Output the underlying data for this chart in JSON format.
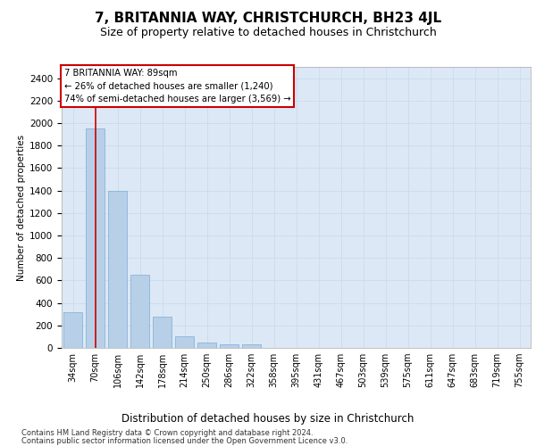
{
  "title": "7, BRITANNIA WAY, CHRISTCHURCH, BH23 4JL",
  "subtitle": "Size of property relative to detached houses in Christchurch",
  "xlabel": "Distribution of detached houses by size in Christchurch",
  "ylabel": "Number of detached properties",
  "footnote1": "Contains HM Land Registry data © Crown copyright and database right 2024.",
  "footnote2": "Contains public sector information licensed under the Open Government Licence v3.0.",
  "annotation_title": "7 BRITANNIA WAY: 89sqm",
  "annotation_line1": "← 26% of detached houses are smaller (1,240)",
  "annotation_line2": "74% of semi-detached houses are larger (3,569) →",
  "bar_categories": [
    "34sqm",
    "70sqm",
    "106sqm",
    "142sqm",
    "178sqm",
    "214sqm",
    "250sqm",
    "286sqm",
    "322sqm",
    "358sqm",
    "395sqm",
    "431sqm",
    "467sqm",
    "503sqm",
    "539sqm",
    "575sqm",
    "611sqm",
    "647sqm",
    "683sqm",
    "719sqm",
    "755sqm"
  ],
  "bar_values": [
    320,
    1950,
    1400,
    650,
    280,
    100,
    45,
    30,
    30,
    0,
    0,
    0,
    0,
    0,
    0,
    0,
    0,
    0,
    0,
    0,
    0
  ],
  "bar_color": "#b8cfe8",
  "bar_edge_color": "#7aaed6",
  "vline_x": 1,
  "vline_color": "#cc0000",
  "ylim": [
    0,
    2500
  ],
  "yticks": [
    0,
    200,
    400,
    600,
    800,
    1000,
    1200,
    1400,
    1600,
    1800,
    2000,
    2200,
    2400
  ],
  "grid_color": "#ccddee",
  "bg_color": "#dce8f5",
  "annotation_box_color": "#cc0000",
  "title_fontsize": 11,
  "subtitle_fontsize": 9
}
